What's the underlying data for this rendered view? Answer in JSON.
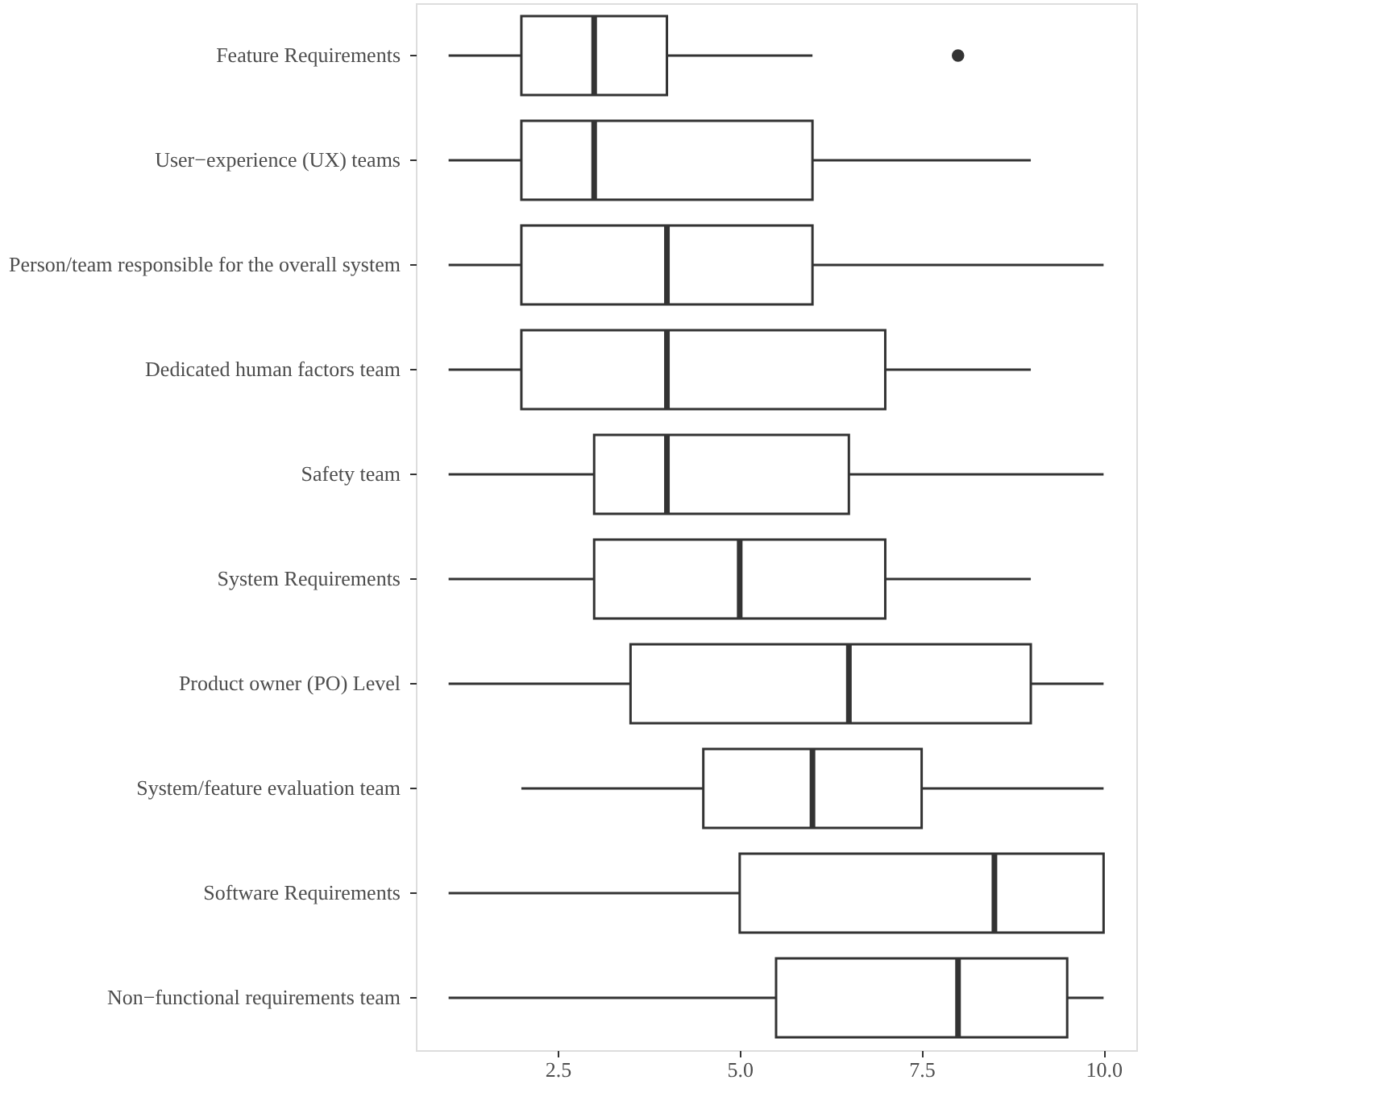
{
  "chart_data": {
    "type": "box",
    "orientation": "horizontal",
    "grid": false,
    "color": "#333333",
    "categories": [
      "Feature Requirements",
      "User−experience (UX) teams",
      "Person/team responsible for the overall system",
      "Dedicated human factors team",
      "Safety team",
      "System Requirements",
      "Product owner (PO) Level",
      "System/feature evaluation team",
      "Software Requirements",
      "Non−functional requirements team"
    ],
    "boxes": [
      {
        "low": 1,
        "q1": 2,
        "median": 3,
        "q3": 4,
        "high": 6,
        "outliers": [
          8
        ]
      },
      {
        "low": 1,
        "q1": 2,
        "median": 3,
        "q3": 6,
        "high": 9
      },
      {
        "low": 1,
        "q1": 2,
        "median": 4,
        "q3": 6,
        "high": 10
      },
      {
        "low": 1,
        "q1": 2,
        "median": 4,
        "q3": 7,
        "high": 9
      },
      {
        "low": 1,
        "q1": 3,
        "median": 4,
        "q3": 6.5,
        "high": 10
      },
      {
        "low": 1,
        "q1": 3,
        "median": 5,
        "q3": 7,
        "high": 9
      },
      {
        "low": 1,
        "q1": 3.5,
        "median": 6.5,
        "q3": 9,
        "high": 10
      },
      {
        "low": 2,
        "q1": 4.5,
        "median": 6,
        "q3": 7.5,
        "high": 10
      },
      {
        "low": 1,
        "q1": 5,
        "median": 8.5,
        "q3": 10,
        "high": 10
      },
      {
        "low": 1,
        "q1": 5.5,
        "median": 8,
        "q3": 9.5,
        "high": 10
      }
    ],
    "xlim": [
      0.55,
      10.45
    ],
    "xticks": [
      2.5,
      {
        "value": 5,
        "label": "5.0"
      },
      7.5,
      {
        "value": 10,
        "label": "10.0"
      }
    ]
  }
}
